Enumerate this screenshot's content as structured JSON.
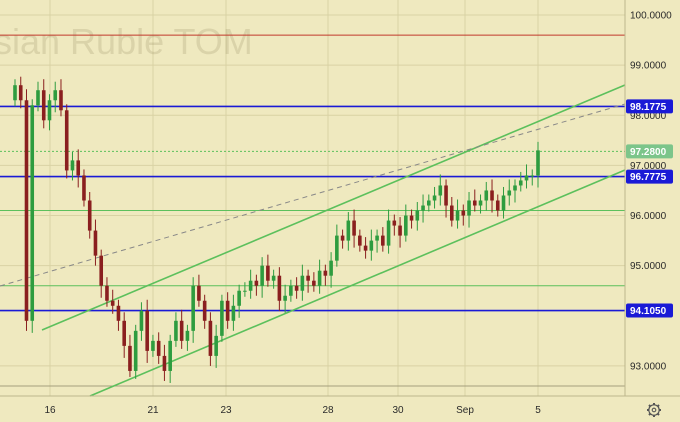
{
  "watermark": "sian Ruble TOM",
  "colors": {
    "background": "#efe9bf",
    "grid": "#d9d2a4",
    "candle_up": "#2e9c3f",
    "candle_down": "#8a1f1f",
    "level_line": "#1a1ad6",
    "channel": "#5cc05c",
    "red_line": "#c0392b",
    "dashed": "#888888",
    "badge_blue": "#1a1ad6",
    "badge_green": "#7cc58a"
  },
  "icons": {
    "settings": "gear-icon"
  },
  "chart_data": {
    "type": "candlestick",
    "title": "",
    "y_ticks": [
      "100.0000",
      "99.0000",
      "98.0000",
      "97.0000",
      "96.0000",
      "95.0000",
      "93.0000"
    ],
    "ylim": [
      92.4,
      100.3
    ],
    "x_ticks": [
      "16",
      "21",
      "23",
      "28",
      "30",
      "Sep",
      "5"
    ],
    "horizontal_levels": [
      {
        "name": "resistance",
        "value": 98.1775,
        "label": "98.1775",
        "color": "blue"
      },
      {
        "name": "support-upper",
        "value": 96.7775,
        "label": "96.7775",
        "color": "blue"
      },
      {
        "name": "support-lower",
        "value": 94.105,
        "label": "94.1050",
        "color": "blue"
      },
      {
        "name": "red-top",
        "value": 99.6,
        "color": "red"
      },
      {
        "name": "green-thin-a",
        "value": 96.1,
        "color": "green"
      },
      {
        "name": "green-thin-b",
        "value": 94.6,
        "color": "green"
      },
      {
        "name": "gray-bottom",
        "value": 92.6,
        "color": "gray"
      }
    ],
    "current_price": {
      "value": 97.28,
      "label": "97.2800"
    },
    "price_labels": [
      "98.1775",
      "97.2800",
      "96.7775",
      "94.1050"
    ],
    "closes": [
      98.6,
      98.3,
      93.9,
      98.2,
      98.5,
      97.9,
      98.3,
      98.5,
      98.1,
      96.9,
      97.1,
      96.8,
      96.3,
      95.7,
      95.2,
      94.6,
      94.3,
      94.2,
      93.9,
      93.4,
      92.9,
      93.7,
      94.1,
      93.3,
      93.5,
      93.2,
      92.9,
      93.5,
      93.9,
      93.5,
      93.7,
      94.6,
      94.3,
      93.9,
      93.2,
      93.6,
      94.3,
      93.9,
      94.2,
      94.5,
      94.5,
      94.7,
      94.6,
      95.0,
      94.7,
      94.8,
      94.3,
      94.4,
      94.6,
      94.5,
      94.8,
      94.7,
      94.6,
      94.9,
      94.8,
      95.1,
      95.6,
      95.5,
      95.9,
      95.6,
      95.4,
      95.3,
      95.5,
      95.6,
      95.4,
      95.9,
      95.8,
      95.6,
      96.0,
      95.9,
      96.1,
      96.2,
      96.3,
      96.4,
      96.6,
      96.2,
      95.9,
      96.1,
      96.0,
      96.3,
      96.2,
      96.3,
      96.5,
      96.3,
      96.1,
      96.4,
      96.5,
      96.6,
      96.7,
      96.8,
      96.8,
      97.3
    ]
  }
}
